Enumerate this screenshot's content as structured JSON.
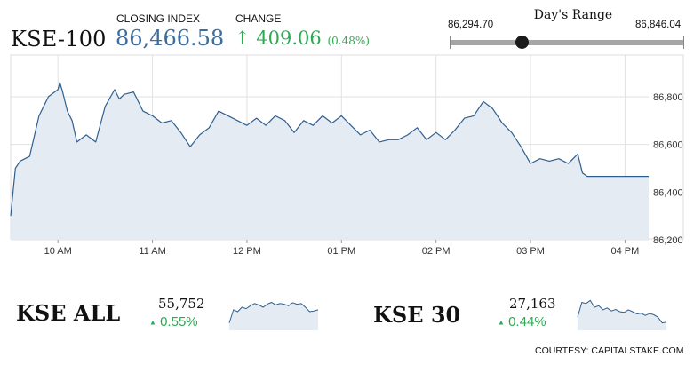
{
  "header": {
    "index_name": "KSE-100",
    "closing_label": "CLOSING INDEX",
    "closing_value": "86,466.58",
    "change_label": "CHANGE",
    "change_arrow": "↑",
    "change_value": "409.06",
    "change_pct": "(0.48%)"
  },
  "days_range": {
    "title": "Day's Range",
    "low": "86,294.70",
    "high": "86,846.04",
    "current_fraction": 0.31
  },
  "chart_data": [
    {
      "type": "area",
      "name": "KSE-100 intraday",
      "x_ticks": [
        "10 AM",
        "11 AM",
        "12 PM",
        "01 PM",
        "02 PM",
        "03 PM",
        "04 PM"
      ],
      "y_ticks": [
        86200,
        86400,
        86600,
        86800
      ],
      "ylim": [
        86200,
        86960
      ],
      "y_tick_labels": [
        "86,200",
        "86,400",
        "86,600",
        "86,800"
      ],
      "x_hours": [
        9.5,
        9.55,
        9.6,
        9.7,
        9.8,
        9.85,
        9.9,
        10.0,
        10.02,
        10.05,
        10.1,
        10.15,
        10.2,
        10.3,
        10.4,
        10.5,
        10.6,
        10.65,
        10.7,
        10.8,
        10.9,
        11.0,
        11.1,
        11.2,
        11.3,
        11.4,
        11.5,
        11.6,
        11.7,
        11.8,
        11.9,
        12.0,
        12.1,
        12.2,
        12.3,
        12.4,
        12.5,
        12.6,
        12.7,
        12.8,
        12.9,
        13.0,
        13.1,
        13.2,
        13.3,
        13.4,
        13.5,
        13.6,
        13.7,
        13.8,
        13.9,
        14.0,
        14.1,
        14.2,
        14.3,
        14.4,
        14.5,
        14.6,
        14.7,
        14.8,
        14.9,
        15.0,
        15.1,
        15.2,
        15.3,
        15.4,
        15.5,
        15.55,
        15.6,
        15.7,
        15.8,
        15.9,
        16.0,
        16.1,
        16.25
      ],
      "values": [
        86300,
        86500,
        86530,
        86550,
        86720,
        86760,
        86800,
        86830,
        86860,
        86820,
        86740,
        86700,
        86610,
        86640,
        86610,
        86760,
        86830,
        86790,
        86810,
        86820,
        86740,
        86720,
        86690,
        86700,
        86650,
        86590,
        86640,
        86670,
        86740,
        86720,
        86700,
        86680,
        86710,
        86680,
        86720,
        86700,
        86650,
        86700,
        86680,
        86720,
        86690,
        86720,
        86680,
        86640,
        86660,
        86610,
        86620,
        86620,
        86640,
        86670,
        86620,
        86650,
        86620,
        86660,
        86710,
        86720,
        86780,
        86750,
        86690,
        86650,
        86590,
        86520,
        86540,
        86530,
        86540,
        86520,
        86560,
        86480,
        86466,
        86466,
        86466,
        86466,
        86466,
        86466,
        86466
      ]
    },
    {
      "type": "area",
      "name": "KSE ALL",
      "values": [
        0.2,
        0.55,
        0.5,
        0.62,
        0.58,
        0.66,
        0.72,
        0.68,
        0.62,
        0.7,
        0.75,
        0.68,
        0.72,
        0.7,
        0.66,
        0.74,
        0.7,
        0.72,
        0.62,
        0.5,
        0.52,
        0.55
      ]
    },
    {
      "type": "area",
      "name": "KSE 30",
      "values": [
        0.35,
        0.75,
        0.72,
        0.8,
        0.62,
        0.66,
        0.55,
        0.6,
        0.52,
        0.56,
        0.5,
        0.48,
        0.55,
        0.5,
        0.44,
        0.46,
        0.4,
        0.45,
        0.42,
        0.35,
        0.2,
        0.22
      ]
    }
  ],
  "sub_indices": [
    {
      "name": "KSE ALL",
      "value": "55,752",
      "arrow": "▲",
      "pct": "0.55%"
    },
    {
      "name": "KSE 30",
      "value": "27,163",
      "arrow": "▲",
      "pct": "0.44%"
    }
  ],
  "courtesy": "COURTESY: CAPITALSTAKE.COM",
  "colors": {
    "line": "#2f5f8e",
    "fill": "#e4ebf2",
    "grid": "#e2e2e2",
    "up": "#2daa52",
    "close": "#3d6e9e"
  }
}
